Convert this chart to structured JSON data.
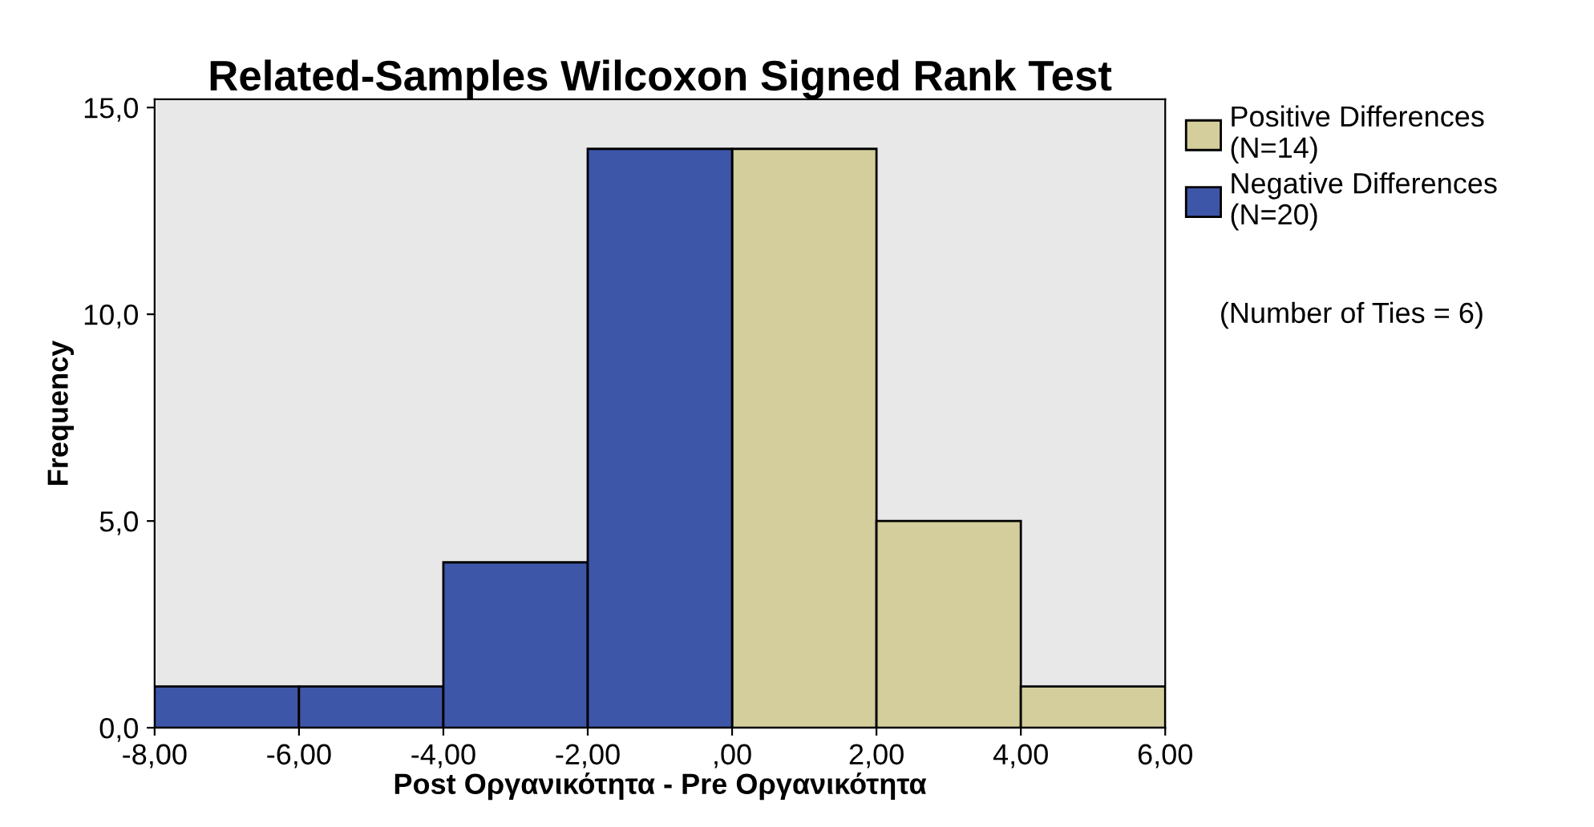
{
  "chart_data": {
    "type": "histogram",
    "title": "Related-Samples Wilcoxon Signed Rank Test",
    "xlabel": "Post Οργανικότητα - Pre Οργανικότητα",
    "ylabel": "Frequency",
    "bins": [
      -8,
      -6,
      -4,
      -2,
      0,
      2,
      4,
      6
    ],
    "series": [
      {
        "name": "Positive Differences\n(N=14)",
        "color": "#d3ce9c",
        "values": [
          null,
          null,
          null,
          null,
          14,
          5,
          1
        ]
      },
      {
        "name": "Negative Differences\n(N=20)",
        "color": "#3e56a8",
        "values": [
          1,
          1,
          4,
          14,
          null,
          null,
          null
        ]
      }
    ],
    "annotations": [
      "(Number of Ties = 6)"
    ],
    "xlim": [
      -8,
      6
    ],
    "xticks": [
      {
        "value": -8,
        "label": "-8,00"
      },
      {
        "value": -6,
        "label": "-6,00"
      },
      {
        "value": -4,
        "label": "-4,00"
      },
      {
        "value": -2,
        "label": "-2,00"
      },
      {
        "value": 0,
        "label": ",00"
      },
      {
        "value": 2,
        "label": "2,00"
      },
      {
        "value": 4,
        "label": "4,00"
      },
      {
        "value": 6,
        "label": "6,00"
      }
    ],
    "ylim": [
      0,
      15.2
    ],
    "yticks": [
      {
        "value": 0,
        "label": "0,0"
      },
      {
        "value": 5,
        "label": "5,0"
      },
      {
        "value": 10,
        "label": "10,0"
      },
      {
        "value": 15,
        "label": "15,0"
      }
    ],
    "grid": false,
    "legend": "top right"
  }
}
